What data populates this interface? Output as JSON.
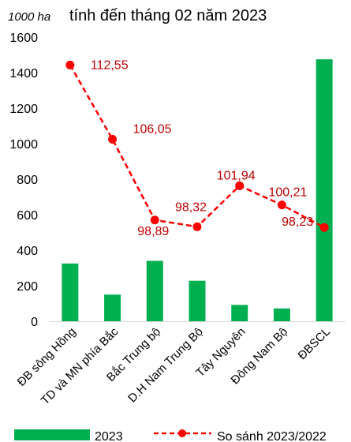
{
  "chart_data": {
    "type": "bar+line",
    "title": "tính đến tháng 02 năm 2023",
    "unit_label": "1000 ha",
    "categories": [
      "ĐB sông Hồng",
      "TD và MN phía Bắc",
      "Bắc Trung bộ",
      "D.H Nam Trung Bộ",
      "Tây Nguyên",
      "Đông Nam Bộ",
      "ĐBSCL"
    ],
    "ylim": [
      0,
      1600
    ],
    "yticks": [
      0,
      200,
      400,
      600,
      800,
      1000,
      1200,
      1400,
      1600
    ],
    "grid": false,
    "legend_position": "bottom",
    "series": [
      {
        "name": "2023",
        "kind": "bar",
        "color": "#00b050",
        "values": [
          325,
          150,
          340,
          228,
          92,
          72,
          1475
        ]
      },
      {
        "name": "So sánh 2023/2022",
        "kind": "line",
        "style": "dashed",
        "color": "#ff0000",
        "values_on_axis": [
          1443,
          1025,
          570,
          532,
          763,
          655,
          528
        ],
        "data_labels": [
          "112,55",
          "106,05",
          "98,89",
          "98,32",
          "101,94",
          "100,21",
          "98,23"
        ]
      }
    ]
  }
}
